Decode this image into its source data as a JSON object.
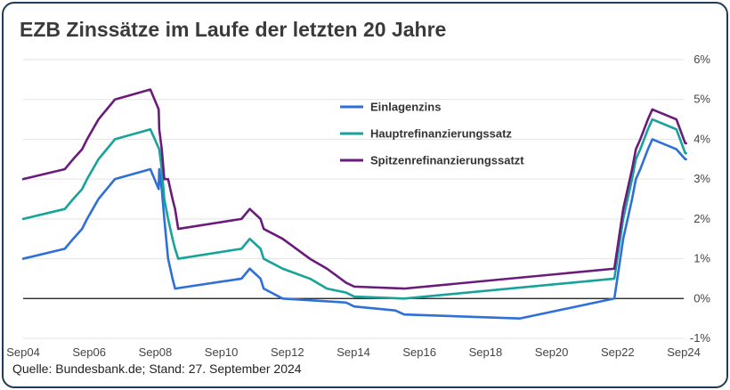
{
  "title": "EZB Zinssätze im Laufe der letzten 20 Jahre",
  "source": "Quelle: Bundesbank.de; Stand: 27. September 2024",
  "chart_data": {
    "type": "line",
    "title": "EZB Zinssätze im Laufe der letzten 20 Jahre",
    "xlabel": "",
    "ylabel": "",
    "x_tick_labels": [
      "Sep04",
      "Sep06",
      "Sep08",
      "Sep10",
      "Sep12",
      "Sep14",
      "Sep16",
      "Sep18",
      "Sep20",
      "Sep22",
      "Sep24"
    ],
    "y_tick_labels": [
      "6%",
      "5%",
      "4%",
      "3%",
      "2%",
      "1%",
      "0%",
      "-1%"
    ],
    "y_ticks": [
      6,
      5,
      4,
      3,
      2,
      1,
      0,
      -1
    ],
    "xlim": [
      "2004-09-01",
      "2024-09-01"
    ],
    "ylim": [
      -1,
      6
    ],
    "y_axis_position": "right",
    "grid": true,
    "zero_line": true,
    "legend_position": "top-center",
    "series": [
      {
        "name": "Einlagenzins",
        "color": "#2e6fd8",
        "points": [
          [
            "2004-09-01",
            1.0
          ],
          [
            "2005-12-06",
            1.25
          ],
          [
            "2006-03-08",
            1.5
          ],
          [
            "2006-06-15",
            1.75
          ],
          [
            "2006-08-09",
            2.0
          ],
          [
            "2006-10-11",
            2.25
          ],
          [
            "2006-12-13",
            2.5
          ],
          [
            "2007-03-14",
            2.75
          ],
          [
            "2007-06-13",
            3.0
          ],
          [
            "2008-07-09",
            3.25
          ],
          [
            "2008-10-09",
            2.75
          ],
          [
            "2008-10-15",
            3.25
          ],
          [
            "2008-11-12",
            2.75
          ],
          [
            "2008-12-10",
            2.0
          ],
          [
            "2009-01-21",
            1.0
          ],
          [
            "2009-03-11",
            0.5
          ],
          [
            "2009-04-08",
            0.25
          ],
          [
            "2011-04-13",
            0.5
          ],
          [
            "2011-07-13",
            0.75
          ],
          [
            "2011-11-09",
            0.5
          ],
          [
            "2011-12-14",
            0.25
          ],
          [
            "2012-07-11",
            0.0
          ],
          [
            "2014-06-11",
            -0.1
          ],
          [
            "2014-09-10",
            -0.2
          ],
          [
            "2015-12-09",
            -0.3
          ],
          [
            "2016-03-16",
            -0.4
          ],
          [
            "2019-09-18",
            -0.5
          ],
          [
            "2022-07-27",
            0.0
          ],
          [
            "2022-09-14",
            0.75
          ],
          [
            "2022-11-02",
            1.5
          ],
          [
            "2022-12-21",
            2.0
          ],
          [
            "2023-02-08",
            2.5
          ],
          [
            "2023-03-22",
            3.0
          ],
          [
            "2023-05-10",
            3.25
          ],
          [
            "2023-06-21",
            3.5
          ],
          [
            "2023-08-02",
            3.75
          ],
          [
            "2023-09-20",
            4.0
          ],
          [
            "2024-06-12",
            3.75
          ],
          [
            "2024-09-18",
            3.5
          ],
          [
            "2024-09-27",
            3.5
          ]
        ]
      },
      {
        "name": "Hauptrefinanzierungssatz",
        "color": "#17a39a",
        "points": [
          [
            "2004-09-01",
            2.0
          ],
          [
            "2005-12-06",
            2.25
          ],
          [
            "2006-03-08",
            2.5
          ],
          [
            "2006-06-15",
            2.75
          ],
          [
            "2006-08-09",
            3.0
          ],
          [
            "2006-10-11",
            3.25
          ],
          [
            "2006-12-13",
            3.5
          ],
          [
            "2007-03-14",
            3.75
          ],
          [
            "2007-06-13",
            4.0
          ],
          [
            "2008-07-09",
            4.25
          ],
          [
            "2008-10-15",
            3.75
          ],
          [
            "2008-11-12",
            3.25
          ],
          [
            "2008-12-10",
            2.5
          ],
          [
            "2009-01-21",
            2.0
          ],
          [
            "2009-03-11",
            1.5
          ],
          [
            "2009-04-08",
            1.25
          ],
          [
            "2009-05-13",
            1.0
          ],
          [
            "2011-04-13",
            1.25
          ],
          [
            "2011-07-13",
            1.5
          ],
          [
            "2011-11-09",
            1.25
          ],
          [
            "2011-12-14",
            1.0
          ],
          [
            "2012-07-11",
            0.75
          ],
          [
            "2013-05-08",
            0.5
          ],
          [
            "2013-11-13",
            0.25
          ],
          [
            "2014-06-11",
            0.15
          ],
          [
            "2014-09-10",
            0.05
          ],
          [
            "2016-03-16",
            0.0
          ],
          [
            "2022-07-27",
            0.5
          ],
          [
            "2022-09-14",
            1.25
          ],
          [
            "2022-11-02",
            2.0
          ],
          [
            "2022-12-21",
            2.5
          ],
          [
            "2023-02-08",
            3.0
          ],
          [
            "2023-03-22",
            3.5
          ],
          [
            "2023-05-10",
            3.75
          ],
          [
            "2023-06-21",
            4.0
          ],
          [
            "2023-08-02",
            4.25
          ],
          [
            "2023-09-20",
            4.5
          ],
          [
            "2024-06-12",
            4.25
          ],
          [
            "2024-09-18",
            3.65
          ],
          [
            "2024-09-27",
            3.65
          ]
        ]
      },
      {
        "name": "Spitzenrefinanzierungssatzt",
        "color": "#6a1b7c",
        "points": [
          [
            "2004-09-01",
            3.0
          ],
          [
            "2005-12-06",
            3.25
          ],
          [
            "2006-03-08",
            3.5
          ],
          [
            "2006-06-15",
            3.75
          ],
          [
            "2006-08-09",
            4.0
          ],
          [
            "2006-10-11",
            4.25
          ],
          [
            "2006-12-13",
            4.5
          ],
          [
            "2007-03-14",
            4.75
          ],
          [
            "2007-06-13",
            5.0
          ],
          [
            "2008-07-09",
            5.25
          ],
          [
            "2008-10-09",
            4.75
          ],
          [
            "2008-10-15",
            4.25
          ],
          [
            "2008-11-12",
            3.75
          ],
          [
            "2008-12-10",
            3.0
          ],
          [
            "2009-01-21",
            3.0
          ],
          [
            "2009-03-11",
            2.5
          ],
          [
            "2009-04-08",
            2.25
          ],
          [
            "2009-05-13",
            1.75
          ],
          [
            "2011-04-13",
            2.0
          ],
          [
            "2011-07-13",
            2.25
          ],
          [
            "2011-11-09",
            2.0
          ],
          [
            "2011-12-14",
            1.75
          ],
          [
            "2012-07-11",
            1.5
          ],
          [
            "2013-05-08",
            1.0
          ],
          [
            "2013-11-13",
            0.75
          ],
          [
            "2014-06-11",
            0.4
          ],
          [
            "2014-09-10",
            0.3
          ],
          [
            "2016-03-16",
            0.25
          ],
          [
            "2022-07-27",
            0.75
          ],
          [
            "2022-09-14",
            1.5
          ],
          [
            "2022-11-02",
            2.25
          ],
          [
            "2022-12-21",
            2.75
          ],
          [
            "2023-02-08",
            3.25
          ],
          [
            "2023-03-22",
            3.75
          ],
          [
            "2023-05-10",
            4.0
          ],
          [
            "2023-06-21",
            4.25
          ],
          [
            "2023-08-02",
            4.5
          ],
          [
            "2023-09-20",
            4.75
          ],
          [
            "2024-06-12",
            4.5
          ],
          [
            "2024-09-18",
            3.9
          ],
          [
            "2024-09-27",
            3.9
          ]
        ]
      }
    ]
  }
}
